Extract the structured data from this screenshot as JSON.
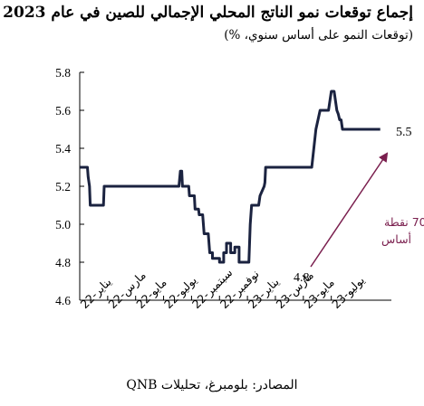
{
  "chart_data": {
    "type": "line",
    "title": "إجماع توقعات نمو الناتج المحلي الإجمالي للصين في عام 2023",
    "subtitle": "(توقعات النمو على أساس سنوي، %)",
    "ylim": [
      4.6,
      5.8
    ],
    "yticks": [
      "4.6",
      "4.8",
      "5.0",
      "5.2",
      "5.4",
      "5.6",
      "5.8"
    ],
    "xlim": [
      0,
      22.3
    ],
    "x_tick_positions": [
      0,
      2,
      4,
      6,
      8,
      10,
      12,
      14,
      16,
      18
    ],
    "x_tick_labels": [
      "يناير-22",
      "مارس-22",
      "مايو-22",
      "يوليو-22",
      "سبتمبر-22",
      "نوفمبر-22",
      "يناير-23",
      "مارس-23",
      "مايو-23",
      "يوليو-23"
    ],
    "grid": false,
    "series": [
      {
        "color": "#1b2340",
        "points": [
          [
            0.0,
            5.3
          ],
          [
            0.55,
            5.3
          ],
          [
            0.6,
            5.25
          ],
          [
            0.7,
            5.2
          ],
          [
            0.75,
            5.1
          ],
          [
            0.95,
            5.1
          ],
          [
            1.2,
            5.1
          ],
          [
            1.7,
            5.1
          ],
          [
            1.75,
            5.2
          ],
          [
            2.5,
            5.2
          ],
          [
            3.5,
            5.2
          ],
          [
            4.5,
            5.2
          ],
          [
            5.0,
            5.2
          ],
          [
            6.0,
            5.2
          ],
          [
            7.0,
            5.2
          ],
          [
            7.1,
            5.2
          ],
          [
            7.2,
            5.28
          ],
          [
            7.3,
            5.28
          ],
          [
            7.35,
            5.2
          ],
          [
            7.8,
            5.2
          ],
          [
            7.85,
            5.15
          ],
          [
            8.2,
            5.15
          ],
          [
            8.25,
            5.08
          ],
          [
            8.5,
            5.08
          ],
          [
            8.55,
            5.05
          ],
          [
            8.8,
            5.05
          ],
          [
            8.9,
            4.95
          ],
          [
            9.2,
            4.95
          ],
          [
            9.3,
            4.85
          ],
          [
            9.5,
            4.85
          ],
          [
            9.5,
            4.82
          ],
          [
            10.0,
            4.82
          ],
          [
            10.0,
            4.8
          ],
          [
            10.3,
            4.8
          ],
          [
            10.3,
            4.85
          ],
          [
            10.5,
            4.85
          ],
          [
            10.5,
            4.9
          ],
          [
            10.8,
            4.9
          ],
          [
            10.8,
            4.85
          ],
          [
            11.1,
            4.85
          ],
          [
            11.1,
            4.88
          ],
          [
            11.4,
            4.88
          ],
          [
            11.4,
            4.8
          ],
          [
            12.1,
            4.8
          ],
          [
            12.2,
            5.0
          ],
          [
            12.3,
            5.1
          ],
          [
            12.8,
            5.1
          ],
          [
            12.9,
            5.15
          ],
          [
            13.2,
            5.2
          ],
          [
            13.25,
            5.22
          ],
          [
            13.3,
            5.3
          ],
          [
            15.5,
            5.3
          ],
          [
            15.8,
            5.3
          ],
          [
            16.1,
            5.3
          ],
          [
            16.4,
            5.3
          ],
          [
            16.6,
            5.3
          ],
          [
            16.9,
            5.5
          ],
          [
            17.2,
            5.6
          ],
          [
            17.5,
            5.6
          ],
          [
            17.8,
            5.6
          ],
          [
            18.0,
            5.7
          ],
          [
            18.2,
            5.7
          ],
          [
            18.4,
            5.6
          ],
          [
            18.5,
            5.58
          ],
          [
            18.6,
            5.55
          ],
          [
            18.7,
            5.55
          ],
          [
            18.8,
            5.5
          ],
          [
            19.5,
            5.5
          ],
          [
            20.2,
            5.5
          ],
          [
            21.5,
            5.5
          ]
        ]
      }
    ],
    "annotations": {
      "start_value": "4.8",
      "end_value": "5.5",
      "gain_line1": "+70 نقطة",
      "gain_line2": "أساس"
    },
    "arrow_color": "#7a1f4e",
    "axis_color": "#000000"
  },
  "source_text": "المصادر: بلومبرغ، تحليلات QNB"
}
